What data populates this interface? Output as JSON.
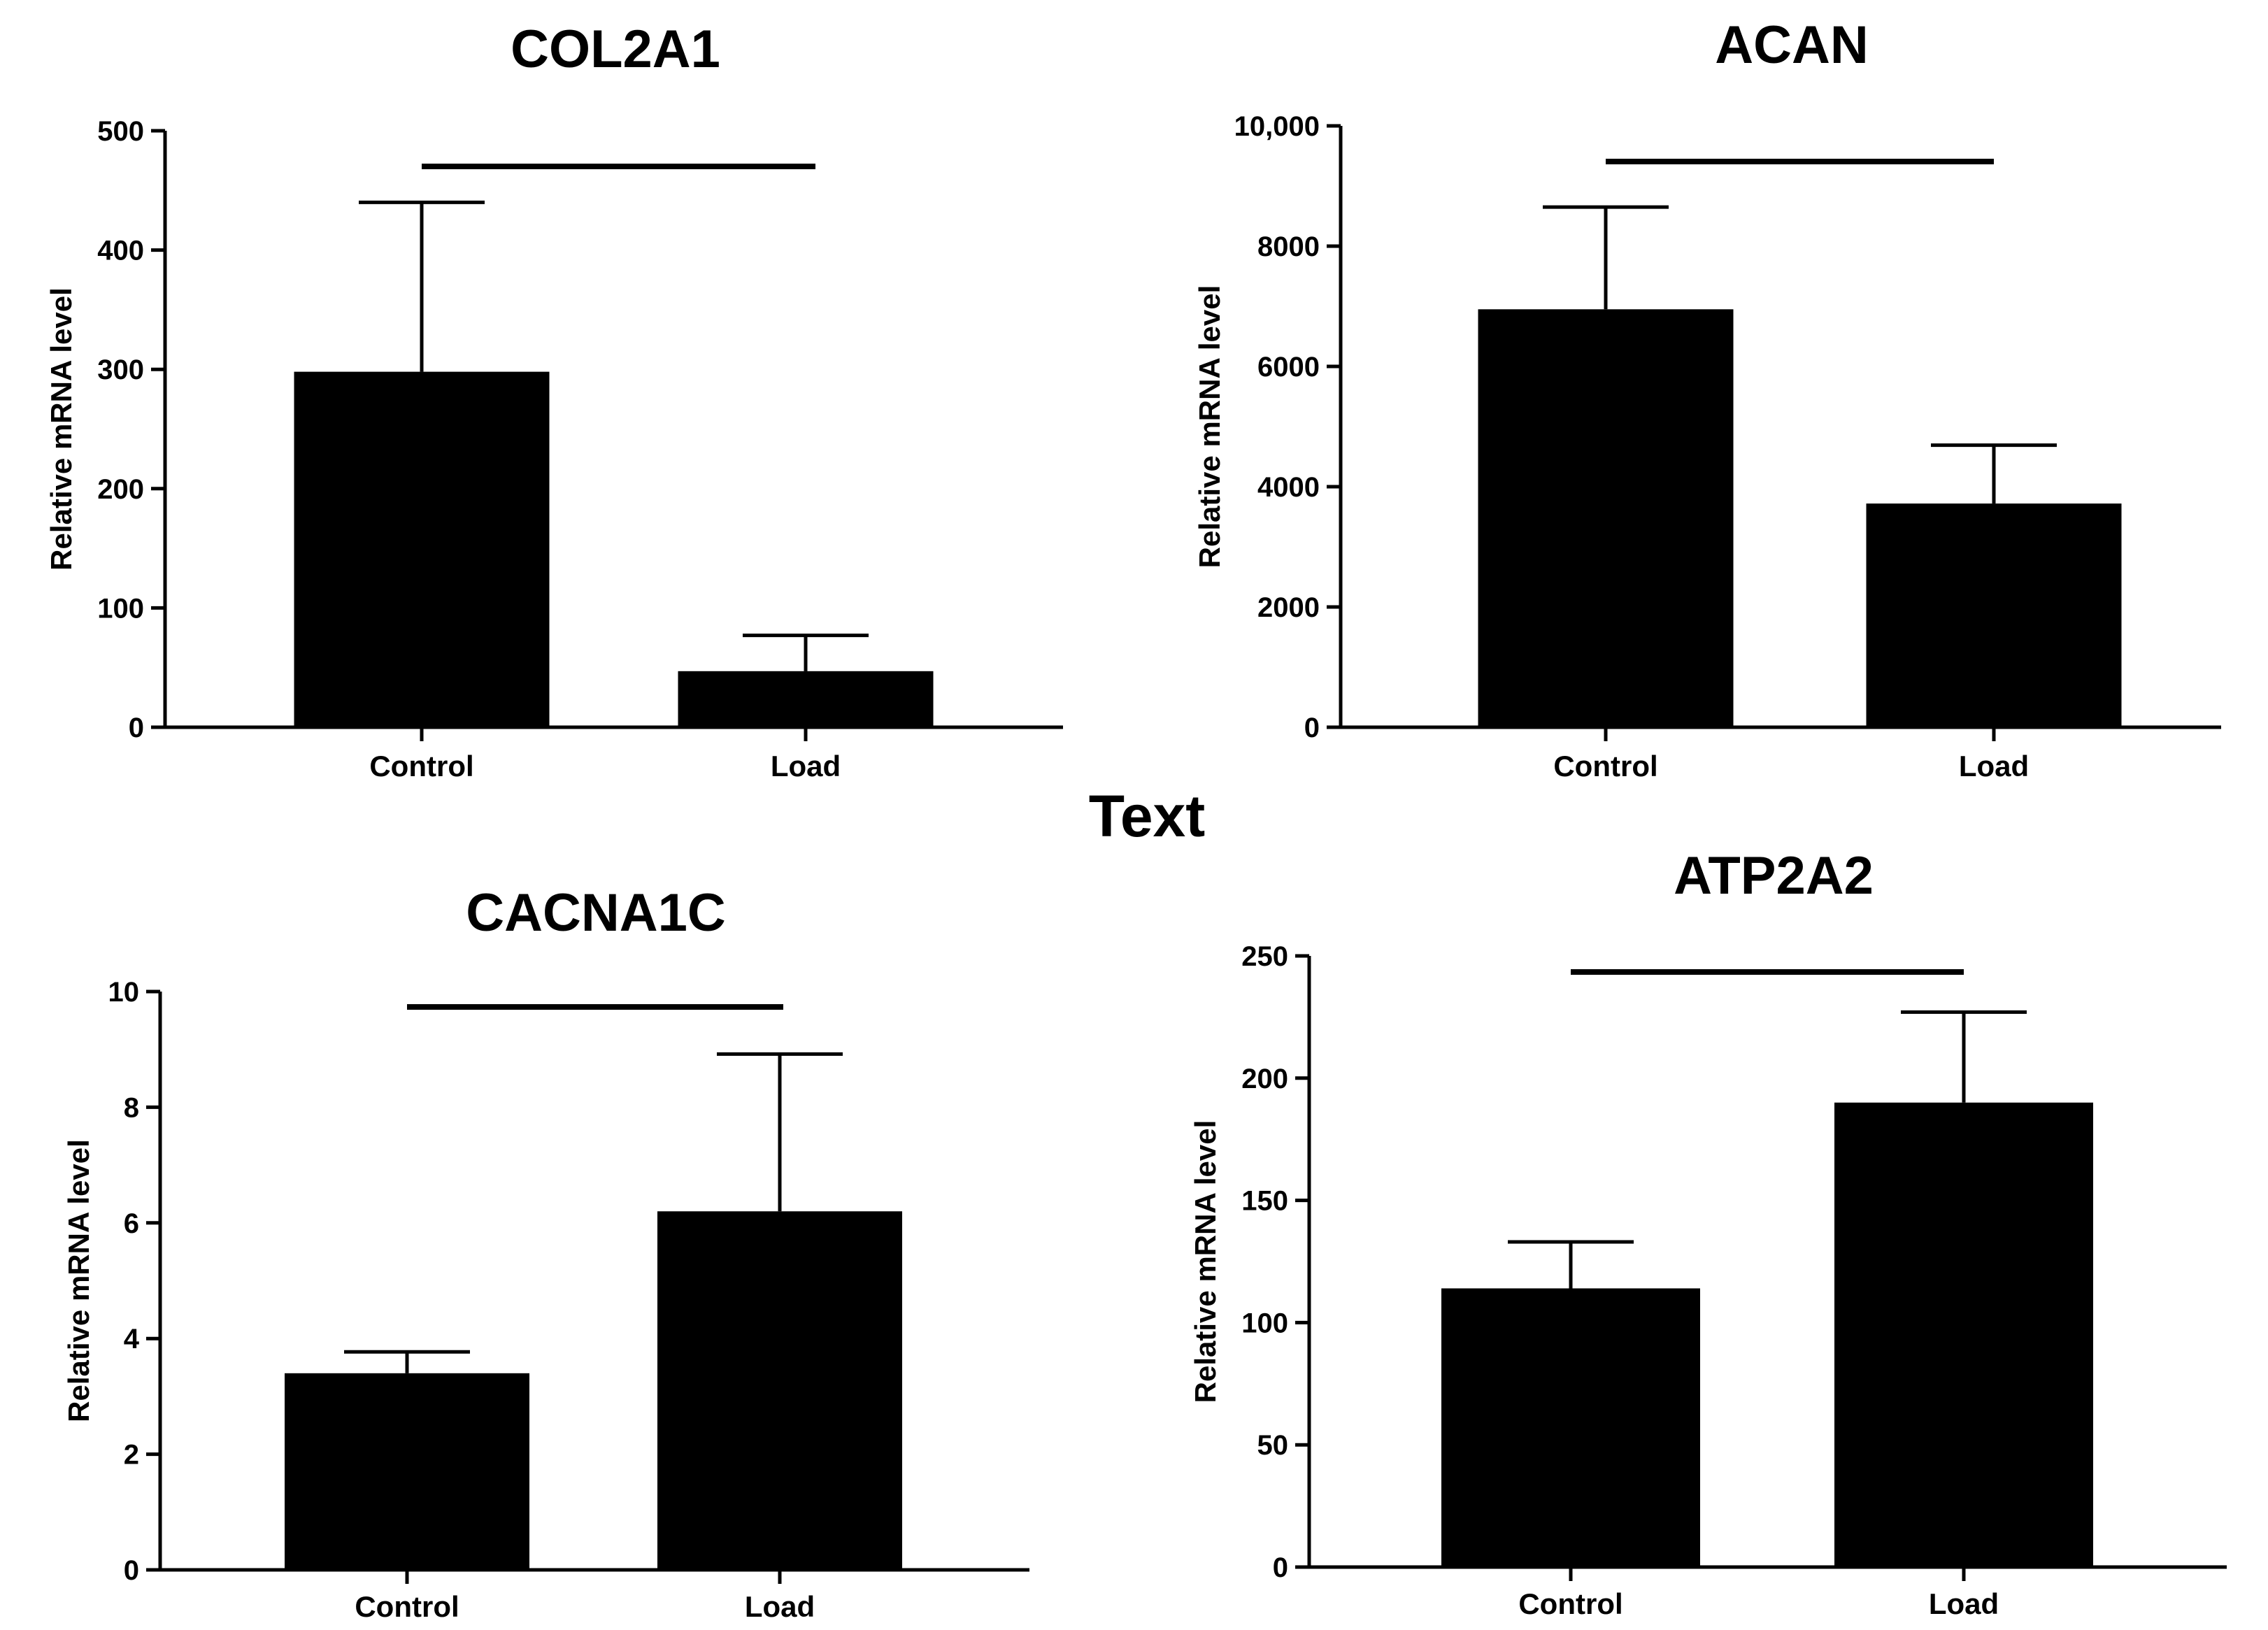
{
  "center_label": "Text",
  "chart_data": [
    {
      "type": "bar",
      "title": "COL2A1",
      "ylabel": "Relative mRNA level",
      "categories": [
        "Control",
        "Load"
      ],
      "values": [
        298,
        47
      ],
      "errors": [
        142,
        30
      ],
      "ylim": [
        0,
        500
      ],
      "yticks": [
        0,
        100,
        200,
        300,
        400,
        500
      ],
      "ytick_labels": [
        "0",
        "100",
        "200",
        "300",
        "400",
        "500"
      ],
      "significance_bar": true
    },
    {
      "type": "bar",
      "title": "ACAN",
      "ylabel": "Relative mRNA level",
      "categories": [
        "Control",
        "Load"
      ],
      "values": [
        6950,
        3720
      ],
      "errors": [
        1700,
        970
      ],
      "ylim": [
        0,
        10000
      ],
      "yticks": [
        0,
        2000,
        4000,
        6000,
        8000,
        10000
      ],
      "ytick_labels": [
        "0",
        "2000",
        "4000",
        "6000",
        "8000",
        "10,000"
      ],
      "significance_bar": true
    },
    {
      "type": "bar",
      "title": "CACNA1C",
      "ylabel": "Relative mRNA level",
      "categories": [
        "Control",
        "Load"
      ],
      "values": [
        3.4,
        6.2
      ],
      "errors": [
        0.37,
        2.72
      ],
      "ylim": [
        0,
        10
      ],
      "yticks": [
        0,
        2,
        4,
        6,
        8,
        10
      ],
      "ytick_labels": [
        "0",
        "2",
        "4",
        "6",
        "8",
        "10"
      ],
      "significance_bar": true
    },
    {
      "type": "bar",
      "title": "ATP2A2",
      "ylabel": "Relative mRNA level",
      "categories": [
        "Control",
        "Load"
      ],
      "values": [
        114,
        190
      ],
      "errors": [
        19,
        37
      ],
      "ylim": [
        0,
        250
      ],
      "yticks": [
        0,
        50,
        100,
        150,
        200,
        250
      ],
      "ytick_labels": [
        "0",
        "50",
        "100",
        "150",
        "200",
        "250"
      ],
      "significance_bar": true
    }
  ]
}
